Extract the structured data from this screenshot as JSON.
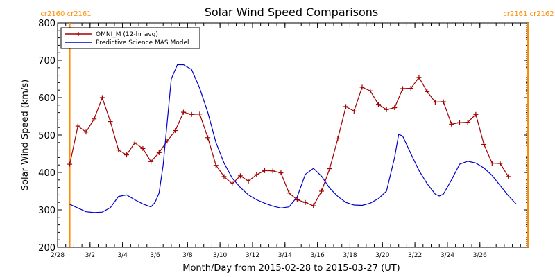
{
  "chart_data": {
    "type": "line",
    "title": "Solar Wind Speed Comparisons",
    "xlabel": "Month/Day from 2015-02-28 to 2015-03-27 (UT)",
    "ylabel": "Solar Wind Speed (km/s)",
    "xlim": [
      "2015-02-28",
      "2015-03-29"
    ],
    "ylim": [
      200,
      800
    ],
    "yticks": [
      200,
      300,
      400,
      500,
      600,
      700,
      800
    ],
    "xticks": [
      {
        "date": "2015-02-28",
        "label": "2/28"
      },
      {
        "date": "2015-03-02",
        "label": "3/2"
      },
      {
        "date": "2015-03-04",
        "label": "3/4"
      },
      {
        "date": "2015-03-06",
        "label": "3/6"
      },
      {
        "date": "2015-03-08",
        "label": "3/8"
      },
      {
        "date": "2015-03-10",
        "label": "3/10"
      },
      {
        "date": "2015-03-12",
        "label": "3/12"
      },
      {
        "date": "2015-03-14",
        "label": "3/14"
      },
      {
        "date": "2015-03-16",
        "label": "3/16"
      },
      {
        "date": "2015-03-18",
        "label": "3/18"
      },
      {
        "date": "2015-03-20",
        "label": "3/20"
      },
      {
        "date": "2015-03-22",
        "label": "3/22"
      },
      {
        "date": "2015-03-24",
        "label": "3/24"
      },
      {
        "date": "2015-03-26",
        "label": "3/26"
      }
    ],
    "legend": {
      "placement": "top-left"
    },
    "carrington_markers": [
      {
        "date": "2015-02-28 18:00",
        "label": "cr2160 cr2161",
        "side": "left"
      },
      {
        "date": "2015-03-28 23:00",
        "label": "cr2161 cr2162",
        "side": "right"
      }
    ],
    "series": [
      {
        "name": "OMNI_M (12-hr avg)",
        "color": "#a00000",
        "marker": "plus",
        "points": [
          [
            "2015-02-28 18:00",
            422
          ],
          [
            "2015-03-01 06:00",
            524
          ],
          [
            "2015-03-01 18:00",
            508
          ],
          [
            "2015-03-02 06:00",
            543
          ],
          [
            "2015-03-02 18:00",
            600
          ],
          [
            "2015-03-03 06:00",
            536
          ],
          [
            "2015-03-03 18:00",
            460
          ],
          [
            "2015-03-04 06:00",
            447
          ],
          [
            "2015-03-04 18:00",
            479
          ],
          [
            "2015-03-05 06:00",
            464
          ],
          [
            "2015-03-05 18:00",
            429
          ],
          [
            "2015-03-06 06:00",
            453
          ],
          [
            "2015-03-06 18:00",
            484
          ],
          [
            "2015-03-07 06:00",
            512
          ],
          [
            "2015-03-07 18:00",
            561
          ],
          [
            "2015-03-08 06:00",
            555
          ],
          [
            "2015-03-08 18:00",
            556
          ],
          [
            "2015-03-09 06:00",
            493
          ],
          [
            "2015-03-09 18:00",
            419
          ],
          [
            "2015-03-10 06:00",
            389
          ],
          [
            "2015-03-10 18:00",
            370
          ],
          [
            "2015-03-11 06:00",
            391
          ],
          [
            "2015-03-11 18:00",
            377
          ],
          [
            "2015-03-12 06:00",
            394
          ],
          [
            "2015-03-12 18:00",
            405
          ],
          [
            "2015-03-13 06:00",
            404
          ],
          [
            "2015-03-13 18:00",
            399
          ],
          [
            "2015-03-14 06:00",
            345
          ],
          [
            "2015-03-14 18:00",
            327
          ],
          [
            "2015-03-15 06:00",
            320
          ],
          [
            "2015-03-15 18:00",
            311
          ],
          [
            "2015-03-16 06:00",
            350
          ],
          [
            "2015-03-16 18:00",
            410
          ],
          [
            "2015-03-17 06:00",
            490
          ],
          [
            "2015-03-17 18:00",
            576
          ],
          [
            "2015-03-18 06:00",
            564
          ],
          [
            "2015-03-18 18:00",
            628
          ],
          [
            "2015-03-19 06:00",
            618
          ],
          [
            "2015-03-19 18:00",
            582
          ],
          [
            "2015-03-20 06:00",
            568
          ],
          [
            "2015-03-20 18:00",
            573
          ],
          [
            "2015-03-21 06:00",
            624
          ],
          [
            "2015-03-21 18:00",
            625
          ],
          [
            "2015-03-22 06:00",
            654
          ],
          [
            "2015-03-22 18:00",
            616
          ],
          [
            "2015-03-23 06:00",
            588
          ],
          [
            "2015-03-23 18:00",
            589
          ],
          [
            "2015-03-24 06:00",
            529
          ],
          [
            "2015-03-24 18:00",
            533
          ],
          [
            "2015-03-25 06:00",
            534
          ],
          [
            "2015-03-25 18:00",
            555
          ],
          [
            "2015-03-26 06:00",
            475
          ],
          [
            "2015-03-26 18:00",
            425
          ],
          [
            "2015-03-27 06:00",
            424
          ],
          [
            "2015-03-27 18:00",
            389
          ]
        ]
      },
      {
        "name": "Predictive Science MAS Model",
        "color": "#0000cc",
        "marker": "none",
        "points": [
          [
            "2015-02-28 18:00",
            315
          ],
          [
            "2015-03-01 06:00",
            305
          ],
          [
            "2015-03-01 18:00",
            295
          ],
          [
            "2015-03-02 06:00",
            293
          ],
          [
            "2015-03-02 18:00",
            294
          ],
          [
            "2015-03-03 06:00",
            306
          ],
          [
            "2015-03-03 18:00",
            336
          ],
          [
            "2015-03-04 06:00",
            340
          ],
          [
            "2015-03-04 18:00",
            327
          ],
          [
            "2015-03-05 06:00",
            316
          ],
          [
            "2015-03-05 18:00",
            308
          ],
          [
            "2015-03-06 00:00",
            320
          ],
          [
            "2015-03-06 06:00",
            345
          ],
          [
            "2015-03-06 12:00",
            420
          ],
          [
            "2015-03-07 00:00",
            650
          ],
          [
            "2015-03-07 09:00",
            688
          ],
          [
            "2015-03-07 18:00",
            688
          ],
          [
            "2015-03-08 06:00",
            675
          ],
          [
            "2015-03-08 18:00",
            625
          ],
          [
            "2015-03-09 06:00",
            560
          ],
          [
            "2015-03-09 18:00",
            480
          ],
          [
            "2015-03-10 06:00",
            425
          ],
          [
            "2015-03-10 18:00",
            385
          ],
          [
            "2015-03-11 06:00",
            360
          ],
          [
            "2015-03-11 18:00",
            340
          ],
          [
            "2015-03-12 06:00",
            327
          ],
          [
            "2015-03-12 18:00",
            318
          ],
          [
            "2015-03-13 06:00",
            310
          ],
          [
            "2015-03-13 18:00",
            305
          ],
          [
            "2015-03-14 06:00",
            308
          ],
          [
            "2015-03-14 18:00",
            335
          ],
          [
            "2015-03-15 06:00",
            395
          ],
          [
            "2015-03-15 18:00",
            411
          ],
          [
            "2015-03-16 06:00",
            390
          ],
          [
            "2015-03-16 18:00",
            358
          ],
          [
            "2015-03-17 06:00",
            336
          ],
          [
            "2015-03-17 18:00",
            320
          ],
          [
            "2015-03-18 06:00",
            313
          ],
          [
            "2015-03-18 18:00",
            312
          ],
          [
            "2015-03-19 06:00",
            318
          ],
          [
            "2015-03-19 18:00",
            330
          ],
          [
            "2015-03-20 06:00",
            350
          ],
          [
            "2015-03-20 18:00",
            440
          ],
          [
            "2015-03-21 00:00",
            502
          ],
          [
            "2015-03-21 06:00",
            497
          ],
          [
            "2015-03-21 18:00",
            450
          ],
          [
            "2015-03-22 06:00",
            405
          ],
          [
            "2015-03-22 18:00",
            370
          ],
          [
            "2015-03-23 06:00",
            342
          ],
          [
            "2015-03-23 12:00",
            337
          ],
          [
            "2015-03-23 18:00",
            342
          ],
          [
            "2015-03-24 06:00",
            380
          ],
          [
            "2015-03-24 18:00",
            422
          ],
          [
            "2015-03-25 06:00",
            430
          ],
          [
            "2015-03-25 18:00",
            425
          ],
          [
            "2015-03-26 06:00",
            412
          ],
          [
            "2015-03-26 18:00",
            392
          ],
          [
            "2015-03-27 06:00",
            365
          ],
          [
            "2015-03-27 18:00",
            338
          ],
          [
            "2015-03-28 06:00",
            315
          ]
        ]
      }
    ]
  }
}
